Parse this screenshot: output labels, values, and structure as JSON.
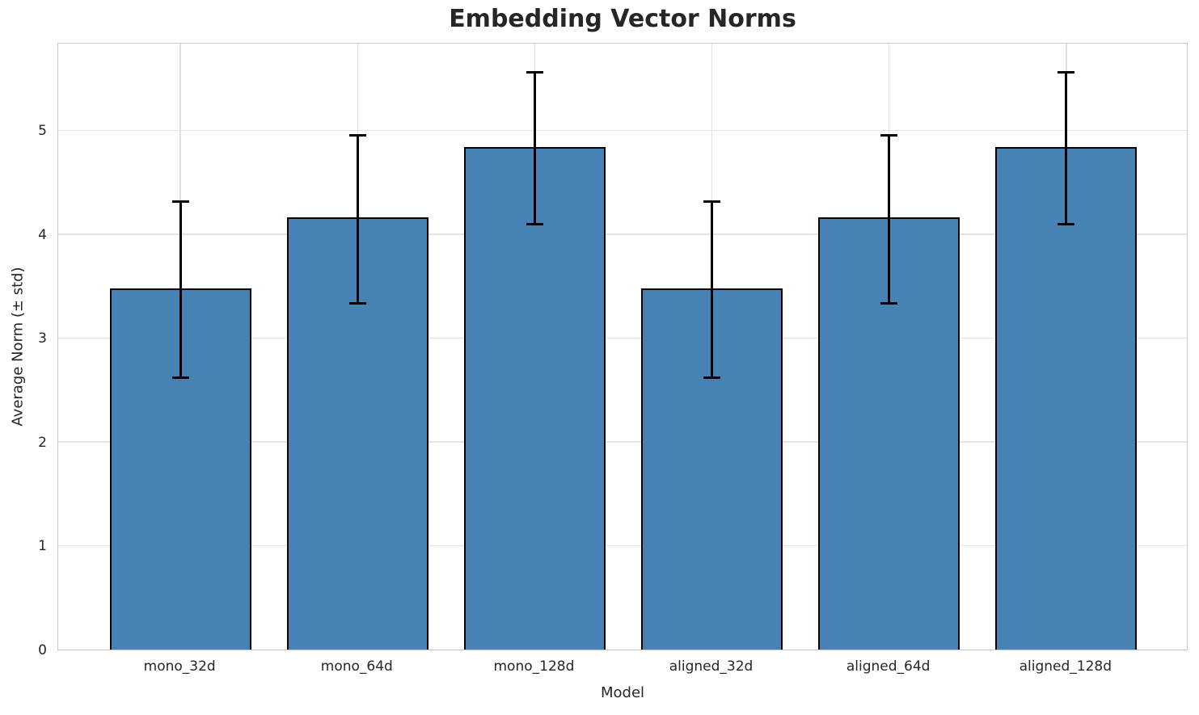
{
  "chart_data": {
    "type": "bar",
    "title": "Embedding Vector Norms",
    "xlabel": "Model",
    "ylabel": "Average Norm (± std)",
    "categories": [
      "mono_32d",
      "mono_64d",
      "mono_128d",
      "aligned_32d",
      "aligned_64d",
      "aligned_128d"
    ],
    "values": [
      3.48,
      4.16,
      4.84,
      3.48,
      4.16,
      4.84
    ],
    "errors": [
      0.85,
      0.81,
      0.73,
      0.85,
      0.81,
      0.73
    ],
    "yticks": [
      0,
      1,
      2,
      3,
      4,
      5
    ],
    "ylim": [
      0,
      5.85
    ],
    "xlim": [
      -0.69,
      5.69
    ],
    "bar_width_units": 0.8,
    "bar_color": "#4682B4",
    "bar_edge_color": "#000000",
    "error_color": "#000000",
    "grid": true,
    "legend": null
  }
}
